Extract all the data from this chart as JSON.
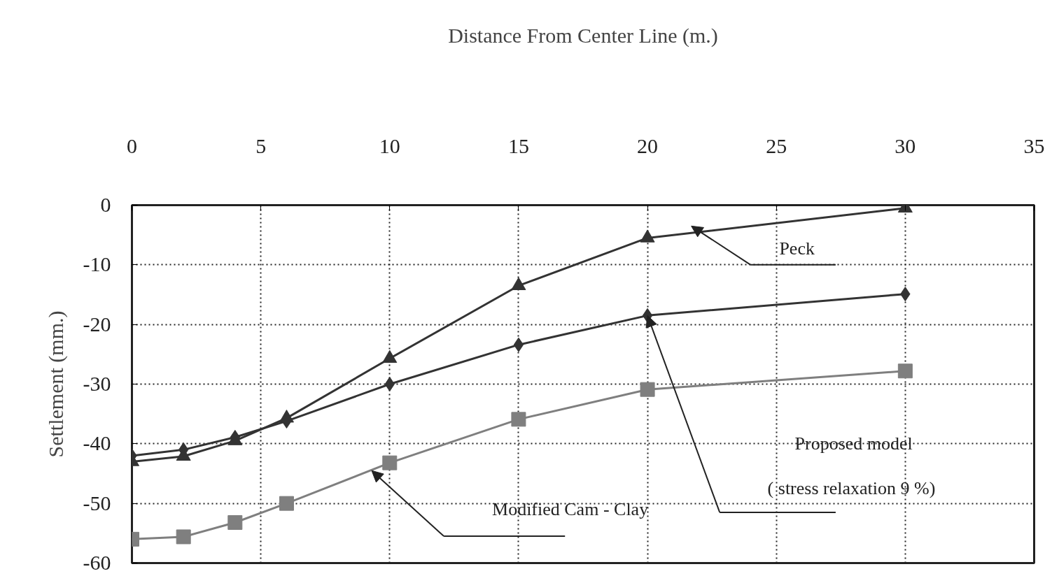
{
  "chart_data": {
    "type": "line",
    "xlabel": "Distance From Center Line (m.)",
    "ylabel": "Settlement (mm.)",
    "x": [
      0,
      2,
      4,
      6,
      10,
      15,
      20,
      30
    ],
    "series": [
      {
        "marker": "triangle",
        "color": "#333333",
        "values": [
          -43.0,
          -42.1,
          -39.5,
          -35.7,
          -25.7,
          -13.5,
          -5.5,
          -0.5
        ]
      },
      {
        "marker": "diamond",
        "color": "#333333",
        "values": [
          -42.0,
          -41.0,
          -38.9,
          -36.2,
          -30.0,
          -23.4,
          -18.5,
          -14.9
        ]
      },
      {
        "marker": "square",
        "color": "#7f7f7f",
        "values": [
          -56.0,
          -55.6,
          -53.2,
          -50.0,
          -43.2,
          -35.9,
          -30.9,
          -27.8
        ]
      }
    ],
    "xlim": [
      0,
      35
    ],
    "xticks": [
      0,
      5,
      10,
      15,
      20,
      25,
      30,
      35
    ],
    "ylim": [
      -60,
      0
    ],
    "yticks": [
      0,
      {
        "value": -10,
        "label": "-10"
      },
      {
        "value": -20,
        "label": "-20"
      },
      {
        "value": -30,
        "label": "-30"
      },
      {
        "value": -40,
        "label": "-40"
      },
      {
        "value": -50,
        "label": "-50"
      },
      {
        "value": -60,
        "label": "-60"
      }
    ],
    "grid": true,
    "line_style": "solid",
    "annotations": [
      "Peck",
      "Proposed model",
      "( stress relaxation 9  %)",
      "Modified Cam - Clay"
    ]
  }
}
